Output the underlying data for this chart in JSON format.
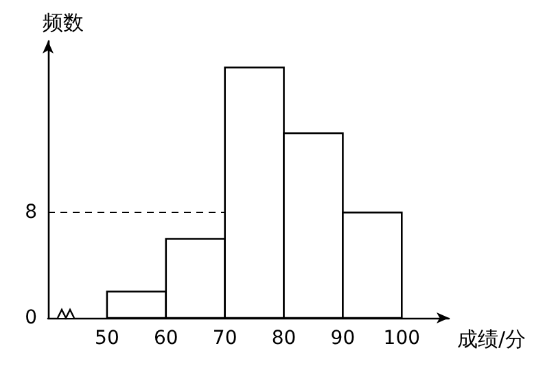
{
  "chart_data": {
    "type": "histogram",
    "xlabel": "成绩/分",
    "ylabel": "频数",
    "bins": [
      50,
      60,
      70,
      80,
      90,
      100
    ],
    "values": [
      2,
      6,
      19,
      14,
      8
    ],
    "color": "#ffffff",
    "xlim": [
      40,
      108
    ],
    "xticks": [
      50,
      60,
      70,
      80,
      90,
      100
    ],
    "ylim": [
      0,
      21
    ],
    "yticks": [
      0,
      8
    ],
    "ref_lines": [
      {
        "axis": "y",
        "value": 8,
        "line_style": "dashed",
        "color": "#000000"
      }
    ],
    "grid": false
  }
}
